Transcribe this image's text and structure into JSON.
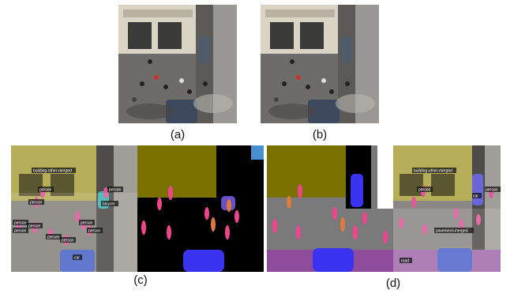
{
  "captions": {
    "a": "(a)",
    "b": "(b)",
    "c": "(c)",
    "d": "(d)"
  },
  "overlay_labels": {
    "c": [
      "building-other-merged",
      "person",
      "person",
      "person",
      "person",
      "person",
      "person",
      "person",
      "person",
      "person",
      "person",
      "car",
      "bicycle"
    ],
    "d": [
      "building-other-merged",
      "person",
      "person",
      "car",
      "pavement-merged",
      "road"
    ]
  },
  "colors": {
    "building_mask": "#7a7200",
    "background_mask": "#000000",
    "car_mask": "#3a34f0",
    "person_mask": "#f0448c",
    "person_mask_alt": "#e07a3c",
    "bicycle_mask": "#6a50c8",
    "road_mask": "#8e4c9a",
    "pavement_mask": "#7a7a7a",
    "sky_mask": "#4a90d0"
  }
}
